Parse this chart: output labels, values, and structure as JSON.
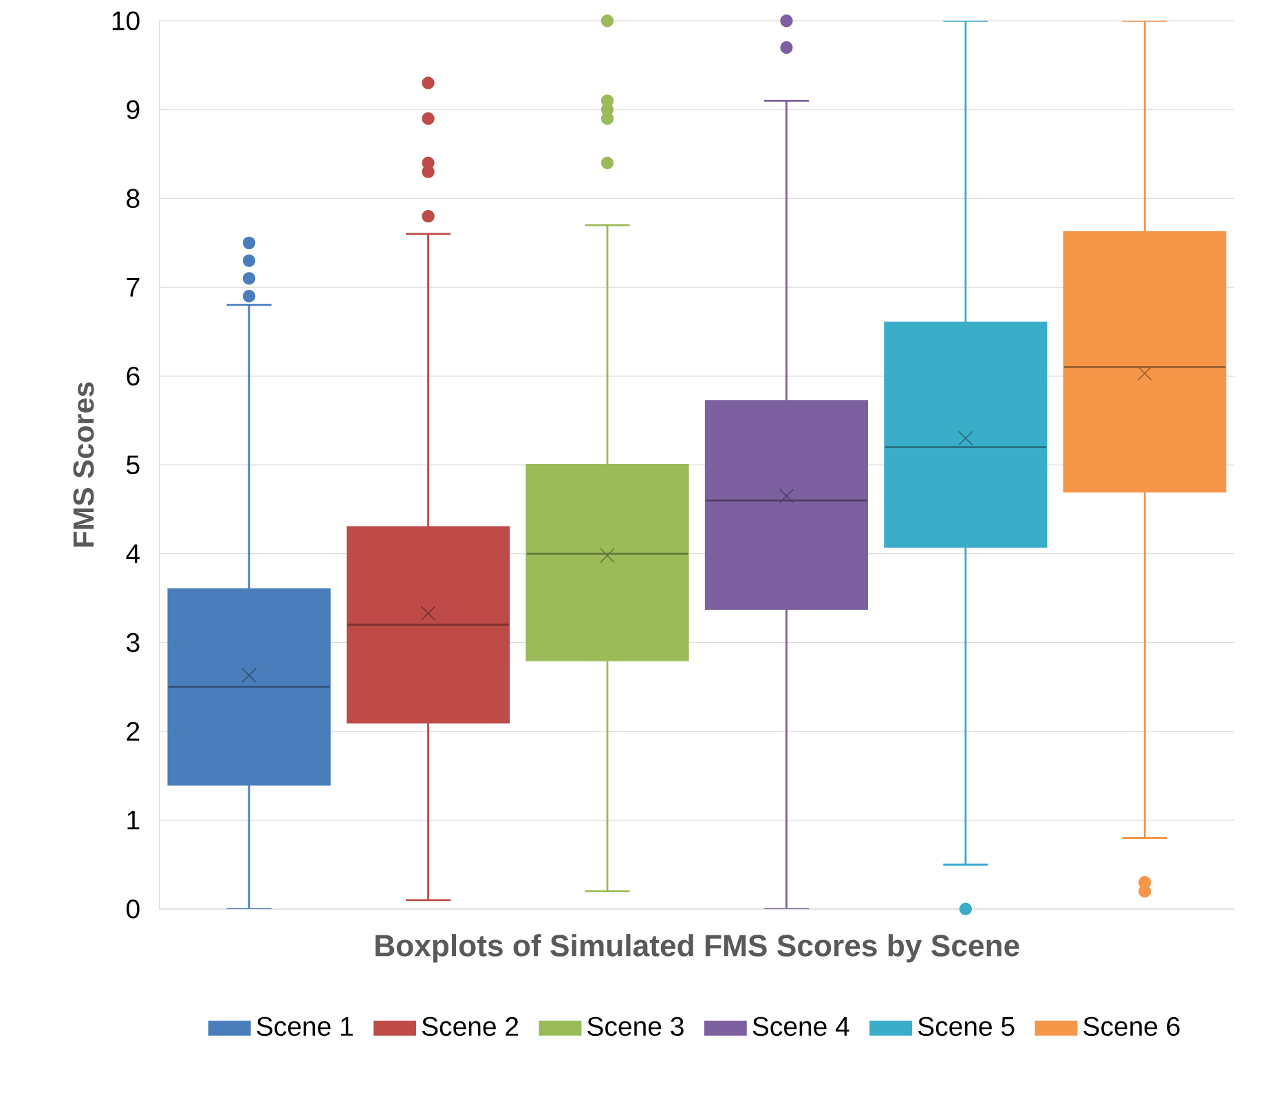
{
  "chart_data": {
    "type": "box",
    "title": "Boxplots of Simulated FMS Scores by Scene",
    "ylabel": "FMS Scores",
    "categories": [
      null
    ],
    "series": [
      {
        "name": "Scene 1",
        "color": "#4a7ebb",
        "boxes": [
          {
            "low": 0,
            "q1": 1.4,
            "median": 2.5,
            "q3": 3.6,
            "high": 6.8,
            "mean": 2.63,
            "outliers": [
              6.9,
              7.1,
              7.3,
              7.5
            ]
          }
        ]
      },
      {
        "name": "Scene 2",
        "color": "#be4b48",
        "boxes": [
          {
            "low": 0.1,
            "q1": 2.1,
            "median": 3.2,
            "q3": 4.3,
            "high": 7.6,
            "mean": 3.33,
            "outliers": [
              7.8,
              8.3,
              8.4,
              8.9,
              9.3
            ]
          }
        ]
      },
      {
        "name": "Scene 3",
        "color": "#9bbb59",
        "boxes": [
          {
            "low": 0.2,
            "q1": 2.8,
            "median": 4.0,
            "q3": 5.0,
            "high": 7.7,
            "mean": 3.98,
            "outliers": [
              8.4,
              8.9,
              9.0,
              9.1,
              10
            ]
          }
        ]
      },
      {
        "name": "Scene 4",
        "color": "#7d60a0",
        "boxes": [
          {
            "low": 0,
            "q1": 3.38,
            "median": 4.6,
            "q3": 5.72,
            "high": 9.1,
            "mean": 4.65,
            "outliers": [
              9.7,
              10
            ]
          }
        ]
      },
      {
        "name": "Scene 5",
        "color": "#3aadc9",
        "boxes": [
          {
            "low": 0.5,
            "q1": 4.08,
            "median": 5.2,
            "q3": 6.6,
            "high": 10,
            "mean": 5.3,
            "outliers": [
              0
            ]
          }
        ]
      },
      {
        "name": "Scene 6",
        "color": "#f59649",
        "boxes": [
          {
            "low": 0.8,
            "q1": 4.7,
            "median": 6.1,
            "q3": 7.62,
            "high": 10,
            "mean": 6.03,
            "outliers": [
              0.2,
              0.3
            ]
          }
        ]
      }
    ],
    "ylim": [
      0,
      10
    ],
    "yticks": [
      0,
      1,
      2,
      3,
      4,
      5,
      6,
      7,
      8,
      9,
      10
    ],
    "grid": "y",
    "legend": "bottom",
    "marker": "circle"
  }
}
